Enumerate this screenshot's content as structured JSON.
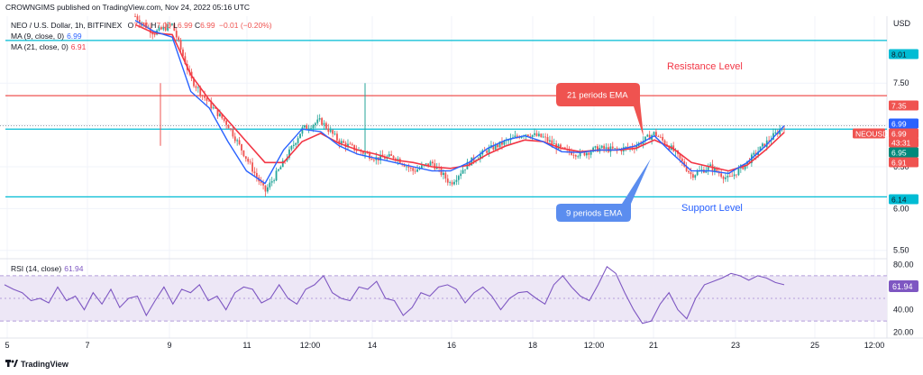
{
  "header": {
    "publisher_line": "CROWNGIMS published on TradingView.com, Nov 24, 2022 05:16 UTC",
    "symbol": "NEO / U.S. Dollar, 1h, BITFINEX",
    "ohlc_label_o": "O",
    "ohlc_o": "7.00",
    "ohlc_label_h": "H",
    "ohlc_h": "7.00",
    "ohlc_label_l": "L",
    "ohlc_l": "6.99",
    "ohlc_label_c": "C",
    "ohlc_c": "6.99",
    "change": "−0.01 (−0.20%)"
  },
  "indicators": {
    "ma9_label": "MA (9, close, 0)",
    "ma9_value": "6.99",
    "ma21_label": "MA (21, close, 0)",
    "ma21_value": "6.91",
    "rsi_label": "RSI (14, close)",
    "rsi_value": "61.94"
  },
  "colors": {
    "up": "#26a69a",
    "down": "#ef5350",
    "ma9": "#2962ff",
    "ma21": "#f23645",
    "rsi": "#7e57c2",
    "rsi_band": "#ede7f6",
    "cyan_line": "#00bcd4",
    "support_label": "#2962ff",
    "resistance_label": "#f23645"
  },
  "annotations": {
    "resistance": "Resistance Level",
    "support": "Support Level",
    "ema21_callout": "21 periods EMA",
    "ema9_callout": "9 periods EMA"
  },
  "price_scale": {
    "currency": "USD",
    "ticks": [
      "7.50",
      "7.00",
      "6.50",
      "6.00",
      "5.50"
    ],
    "labels": [
      {
        "text": "8.01",
        "kind": "cyan"
      },
      {
        "text": "7.35",
        "kind": "red"
      },
      {
        "text": "6.99",
        "kind": "blue"
      },
      {
        "text": "NEOUSD",
        "kind": "red"
      },
      {
        "text": "6.99",
        "kind": "red"
      },
      {
        "text": "43:31",
        "kind": "red"
      },
      {
        "text": "6.95",
        "kind": "cyan"
      },
      {
        "text": "6.91",
        "kind": "red"
      },
      {
        "text": "6.14",
        "kind": "cyan"
      }
    ]
  },
  "rsi_scale": {
    "ticks": [
      "80.00",
      "60.00",
      "40.00",
      "20.00"
    ],
    "current": "61.94"
  },
  "time_axis": [
    "5",
    "7",
    "9",
    "11",
    "12:00",
    "14",
    "16",
    "18",
    "12:00",
    "21",
    "23",
    "25",
    "12:00"
  ],
  "footer": {
    "brand": "TradingView"
  },
  "chart_data": {
    "type": "candlestick",
    "title": "NEO / U.S. Dollar, 1h, BITFINEX",
    "ylabel": "USD",
    "ylim": [
      5.4,
      8.3
    ],
    "levels": {
      "resistance_upper": 8.01,
      "resistance": 7.35,
      "pivot": 6.95,
      "support": 6.14
    },
    "price_path": [
      {
        "x": "8",
        "y": 8.3
      },
      {
        "x": "8",
        "y": 8.1
      },
      {
        "x": "8",
        "y": 8.2
      },
      {
        "x": "9",
        "y": 7.55
      },
      {
        "x": "9",
        "y": 7.25
      },
      {
        "x": "9",
        "y": 7.0
      },
      {
        "x": "9",
        "y": 6.6
      },
      {
        "x": "10",
        "y": 6.2
      },
      {
        "x": "10",
        "y": 6.55
      },
      {
        "x": "11",
        "y": 6.95
      },
      {
        "x": "11",
        "y": 7.05
      },
      {
        "x": "11",
        "y": 6.8
      },
      {
        "x": "12:00",
        "y": 6.7
      },
      {
        "x": "12:00",
        "y": 6.6
      },
      {
        "x": "13",
        "y": 6.62
      },
      {
        "x": "13",
        "y": 6.45
      },
      {
        "x": "14",
        "y": 6.55
      },
      {
        "x": "14",
        "y": 6.3
      },
      {
        "x": "14",
        "y": 6.55
      },
      {
        "x": "15",
        "y": 6.7
      },
      {
        "x": "15",
        "y": 6.8
      },
      {
        "x": "16",
        "y": 6.9
      },
      {
        "x": "16",
        "y": 6.85
      },
      {
        "x": "17",
        "y": 6.7
      },
      {
        "x": "17",
        "y": 6.65
      },
      {
        "x": "18",
        "y": 6.72
      },
      {
        "x": "18",
        "y": 6.7
      },
      {
        "x": "12:00",
        "y": 6.75
      },
      {
        "x": "20",
        "y": 6.9
      },
      {
        "x": "21",
        "y": 6.7
      },
      {
        "x": "21",
        "y": 6.4
      },
      {
        "x": "22",
        "y": 6.5
      },
      {
        "x": "22",
        "y": 6.35
      },
      {
        "x": "23",
        "y": 6.55
      },
      {
        "x": "23",
        "y": 6.78
      },
      {
        "x": "24",
        "y": 6.99
      }
    ],
    "spikes": [
      {
        "x": "9",
        "high": 7.5,
        "low": 6.75
      },
      {
        "x": "14",
        "high": 7.5,
        "low": 6.6
      }
    ],
    "ma9_path": [
      8.25,
      8.12,
      8.05,
      7.4,
      7.2,
      6.8,
      6.45,
      6.3,
      6.7,
      6.95,
      6.92,
      6.75,
      6.65,
      6.6,
      6.55,
      6.5,
      6.45,
      6.45,
      6.55,
      6.72,
      6.82,
      6.87,
      6.8,
      6.68,
      6.67,
      6.7,
      6.7,
      6.75,
      6.87,
      6.65,
      6.45,
      6.45,
      6.42,
      6.55,
      6.75,
      6.99
    ],
    "ma21_path": [
      8.2,
      8.1,
      8.08,
      7.6,
      7.3,
      7.05,
      6.8,
      6.55,
      6.55,
      6.8,
      6.9,
      6.78,
      6.7,
      6.65,
      6.58,
      6.55,
      6.5,
      6.48,
      6.52,
      6.65,
      6.75,
      6.82,
      6.8,
      6.72,
      6.68,
      6.7,
      6.7,
      6.72,
      6.82,
      6.72,
      6.55,
      6.5,
      6.45,
      6.52,
      6.7,
      6.91
    ],
    "rsi": {
      "ylim": [
        15,
        85
      ],
      "bands": [
        30,
        70
      ],
      "values": [
        62,
        58,
        55,
        48,
        50,
        46,
        60,
        48,
        52,
        40,
        55,
        45,
        58,
        42,
        50,
        52,
        35,
        48,
        60,
        45,
        58,
        55,
        62,
        48,
        52,
        40,
        55,
        60,
        58,
        46,
        50,
        62,
        50,
        45,
        58,
        62,
        70,
        55,
        50,
        48,
        60,
        58,
        65,
        50,
        48,
        35,
        42,
        55,
        52,
        60,
        62,
        58,
        46,
        55,
        60,
        52,
        40,
        50,
        55,
        56,
        50,
        45,
        62,
        70,
        60,
        52,
        48,
        62,
        78,
        72,
        55,
        40,
        28,
        30,
        45,
        55,
        40,
        32,
        50,
        62,
        65,
        68,
        72,
        70,
        66,
        70,
        68,
        64,
        62
      ]
    }
  }
}
